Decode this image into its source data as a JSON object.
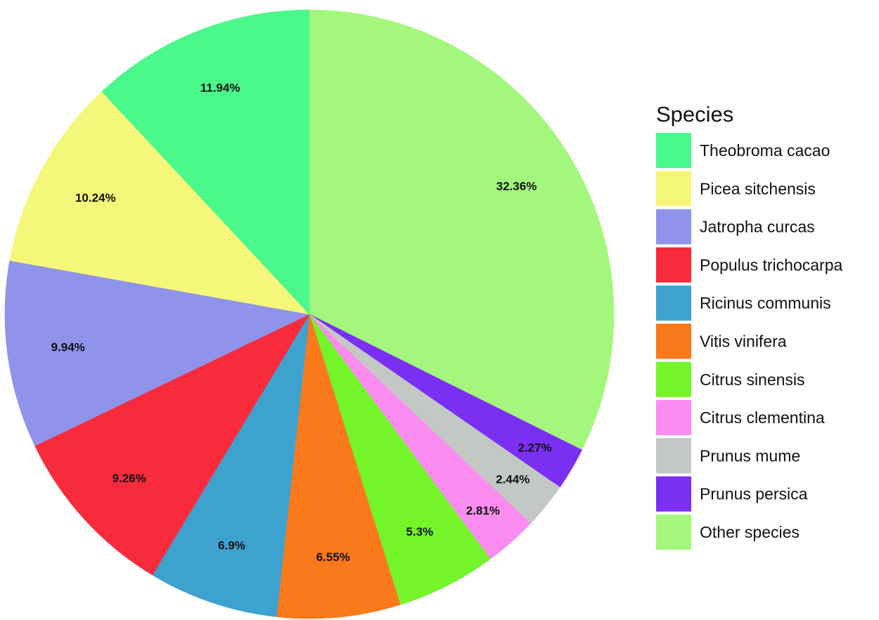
{
  "chart_data": {
    "type": "pie",
    "title": "",
    "legend_title": "Species",
    "legend_position": "right",
    "start": "12 o'clock, clockwise",
    "slices": [
      {
        "name": "Other species",
        "value": 32.36,
        "label": "32.36%",
        "color": "#a3f77d"
      },
      {
        "name": "Prunus persica",
        "value": 2.27,
        "label": "2.27%",
        "color": "#7a2ff2"
      },
      {
        "name": "Prunus mume",
        "value": 2.44,
        "label": "2.44%",
        "color": "#c3c8c5"
      },
      {
        "name": "Citrus clementina",
        "value": 2.81,
        "label": "2.81%",
        "color": "#fb8cf0"
      },
      {
        "name": "Citrus sinensis",
        "value": 5.3,
        "label": "5.3%",
        "color": "#73f52a"
      },
      {
        "name": "Vitis vinifera",
        "value": 6.55,
        "label": "6.55%",
        "color": "#f9791b"
      },
      {
        "name": "Ricinus communis",
        "value": 6.9,
        "label": "6.9%",
        "color": "#3ea2cf"
      },
      {
        "name": "Populus trichocarpa",
        "value": 9.26,
        "label": "9.26%",
        "color": "#f82b3d"
      },
      {
        "name": "Jatropha curcas",
        "value": 9.94,
        "label": "9.94%",
        "color": "#8f93ea"
      },
      {
        "name": "Picea sitchensis",
        "value": 10.24,
        "label": "10.24%",
        "color": "#f5f77a"
      },
      {
        "name": "Theobroma cacao",
        "value": 11.94,
        "label": "11.94%",
        "color": "#4af88c"
      }
    ],
    "legend": [
      "Theobroma cacao",
      "Picea sitchensis",
      "Jatropha curcas",
      "Populus trichocarpa",
      "Ricinus communis",
      "Vitis vinifera",
      "Citrus sinensis",
      "Citrus clementina",
      "Prunus mume",
      "Prunus persica",
      "Other species"
    ]
  }
}
